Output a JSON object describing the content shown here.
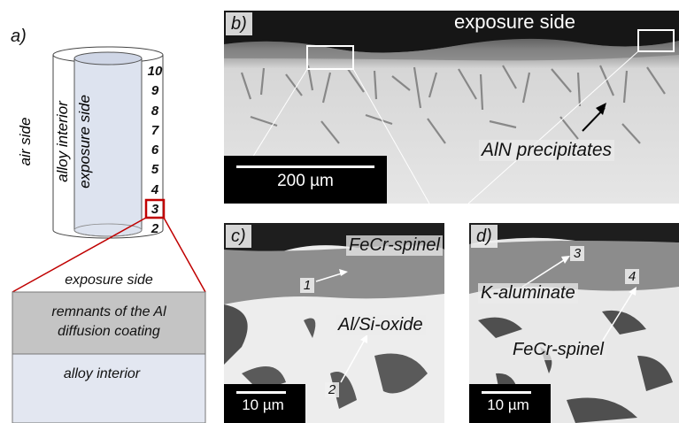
{
  "panel_a": {
    "label": "a)",
    "air_side": "air side",
    "alloy_interior_vertical": "alloy interior",
    "exposure_side_vertical": "exposure side",
    "numbers": [
      "10",
      "9",
      "8",
      "7",
      "6",
      "5",
      "4",
      "3",
      "2"
    ],
    "detail_title": "exposure side",
    "detail_coating": "remnants of the Al diffusion coating",
    "detail_coating_line1": "remnants of the Al",
    "detail_coating_line2": "diffusion coating",
    "detail_interior": "alloy interior",
    "colors": {
      "coating": "#c4c4c4",
      "interior": "#e3e7f1",
      "highlight": "#c00000"
    }
  },
  "panel_b": {
    "label": "b)",
    "top_text": "exposure side",
    "annotation": "AlN precipitates",
    "scale": "200 µm"
  },
  "panel_c": {
    "label": "c)",
    "spinel": "FeCr-spinel",
    "oxide": "Al/Si-oxide",
    "point1": "1",
    "point2": "2",
    "scale": "10 µm"
  },
  "panel_d": {
    "label": "d)",
    "aluminate": "K-aluminate",
    "spinel": "FeCr-spinel",
    "point3": "3",
    "point4": "4",
    "scale": "10 µm"
  }
}
